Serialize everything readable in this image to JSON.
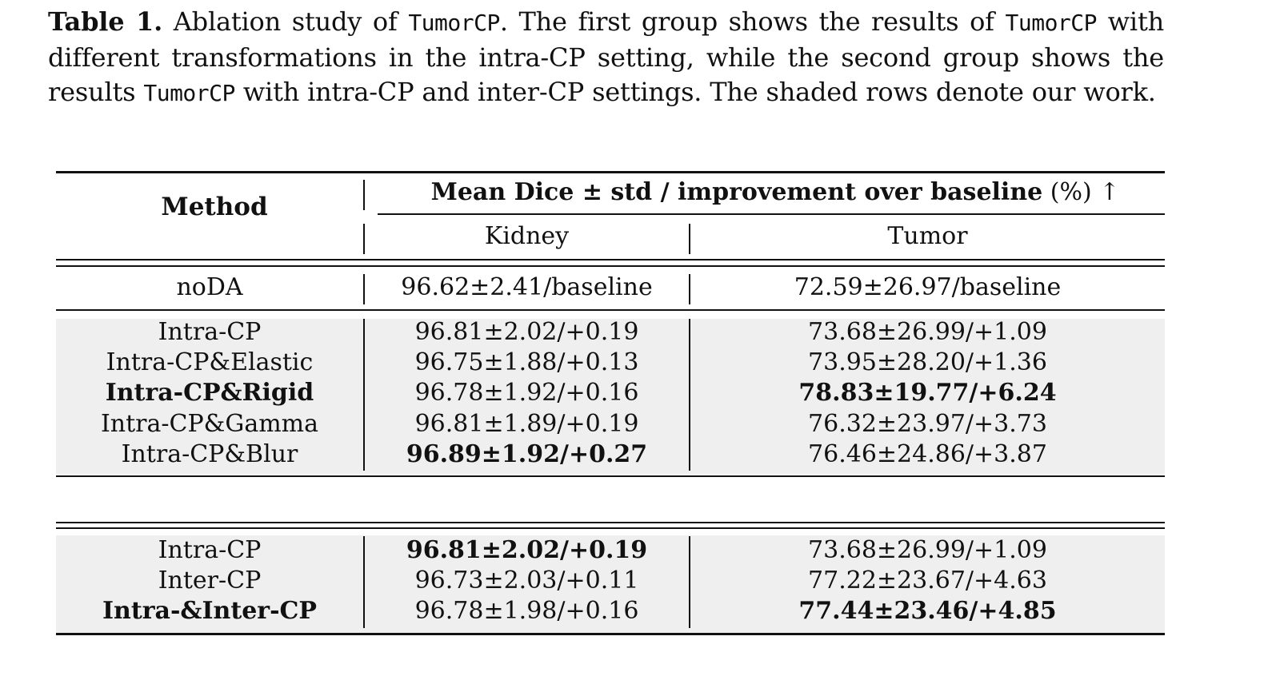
{
  "caption": {
    "label": "Table 1.",
    "p1": " Ablation study of ",
    "m1": "TumorCP",
    "p2": ". The first group shows the results of ",
    "m2": "TumorCP",
    "p3": " with different transformations in the intra-CP setting, while the second group shows the results ",
    "m3": "TumorCP",
    "p4": " with intra-CP and inter-CP settings. The shaded rows denote our work."
  },
  "table": {
    "header": {
      "method": "Method",
      "metric_bold": "Mean Dice ± std / improvement over baseline",
      "metric_rest": " (%) ↑",
      "kidney": "Kidney",
      "tumor": "Tumor"
    },
    "baseline": {
      "method": "noDA",
      "kidney": "96.62±2.41/baseline",
      "tumor": "72.59±26.97/baseline"
    },
    "group1": [
      {
        "method": "Intra-CP",
        "kidney": "96.81±2.02/+0.19",
        "tumor": "73.68±26.99/+1.09",
        "bold_method": false,
        "bold_kidney": false,
        "bold_tumor": false
      },
      {
        "method": "Intra-CP&Elastic",
        "kidney": "96.75±1.88/+0.13",
        "tumor": "73.95±28.20/+1.36",
        "bold_method": false,
        "bold_kidney": false,
        "bold_tumor": false
      },
      {
        "method": "Intra-CP&Rigid",
        "kidney": "96.78±1.92/+0.16",
        "tumor": "78.83±19.77/+6.24",
        "bold_method": true,
        "bold_kidney": false,
        "bold_tumor": true
      },
      {
        "method": "Intra-CP&Gamma",
        "kidney": "96.81±1.89/+0.19",
        "tumor": "76.32±23.97/+3.73",
        "bold_method": false,
        "bold_kidney": false,
        "bold_tumor": false
      },
      {
        "method": "Intra-CP&Blur",
        "kidney": "96.89±1.92/+0.27",
        "tumor": "76.46±24.86/+3.87",
        "bold_method": false,
        "bold_kidney": true,
        "bold_tumor": false
      }
    ],
    "group2": [
      {
        "method": "Intra-CP",
        "kidney": "96.81±2.02/+0.19",
        "tumor": "73.68±26.99/+1.09",
        "bold_method": false,
        "bold_kidney": true,
        "bold_tumor": false
      },
      {
        "method": "Inter-CP",
        "kidney": "96.73±2.03/+0.11",
        "tumor": "77.22±23.67/+4.63",
        "bold_method": false,
        "bold_kidney": false,
        "bold_tumor": false
      },
      {
        "method": "Intra-&Inter-CP",
        "kidney": "96.78±1.98/+0.16",
        "tumor": "77.44±23.46/+4.85",
        "bold_method": true,
        "bold_kidney": false,
        "bold_tumor": true
      }
    ],
    "shade_color": "#efefef"
  }
}
